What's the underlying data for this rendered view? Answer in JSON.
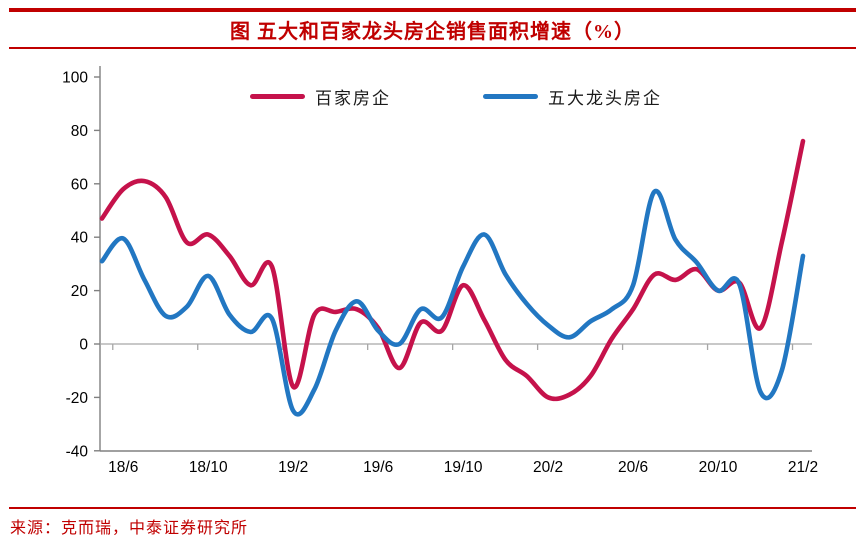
{
  "header": {
    "title": "图 五大和百家龙头房企销售面积增速（%）"
  },
  "legend": [
    {
      "label": "百家房企",
      "color": "#C5124B"
    },
    {
      "label": "五大龙头房企",
      "color": "#2277C2"
    }
  ],
  "footer": {
    "source": "来源：克而瑞，中泰证券研究所"
  },
  "colors": {
    "accent_red": "#C00000",
    "axis_gray": "#808080",
    "zero_line_gray": "#A6A6A6",
    "tick_label_black": "#000000"
  },
  "chart_data": {
    "type": "line",
    "title": "图 五大和百家龙头房企销售面积增速（%）",
    "xlabel": "",
    "ylabel": "",
    "ylim": [
      -40,
      100
    ],
    "y_ticks": [
      100,
      80,
      60,
      40,
      20,
      0,
      -20,
      -40
    ],
    "grid": "zero-baseline-only",
    "legend_position": "top-center",
    "smoothing": true,
    "x": [
      "18/5",
      "18/6",
      "18/7",
      "18/8",
      "18/9",
      "18/10",
      "18/11",
      "18/12",
      "19/1",
      "19/2",
      "19/3",
      "19/4",
      "19/5",
      "19/6",
      "19/7",
      "19/8",
      "19/9",
      "19/10",
      "19/11",
      "19/12",
      "20/1",
      "20/2",
      "20/3",
      "20/4",
      "20/5",
      "20/6",
      "20/7",
      "20/8",
      "20/9",
      "20/10",
      "20/11",
      "20/12",
      "21/1",
      "21/2"
    ],
    "x_tick_labels": [
      "18/6",
      "18/10",
      "19/2",
      "19/6",
      "19/10",
      "20/2",
      "20/6",
      "20/10",
      "21/2"
    ],
    "series": [
      {
        "name": "百家房企",
        "color": "#C5124B",
        "values": [
          47,
          58,
          61,
          55,
          38,
          41,
          33,
          22,
          29,
          -16,
          11,
          12,
          13,
          6,
          -9,
          8,
          5,
          22,
          9,
          -6,
          -12,
          -20,
          -19,
          -12,
          2,
          13,
          26,
          24,
          28,
          20,
          23,
          6,
          38,
          76
        ]
      },
      {
        "name": "五大龙头房企",
        "color": "#2277C2",
        "values": [
          31,
          39.5,
          24,
          10.5,
          14,
          25.5,
          11,
          4.5,
          9.5,
          -25,
          -17,
          5,
          16,
          5,
          0,
          13,
          10,
          29,
          41,
          26,
          15,
          7,
          2.5,
          8.5,
          13,
          22,
          57,
          39,
          30.5,
          20,
          22.5,
          -18,
          -10,
          33
        ]
      }
    ]
  }
}
